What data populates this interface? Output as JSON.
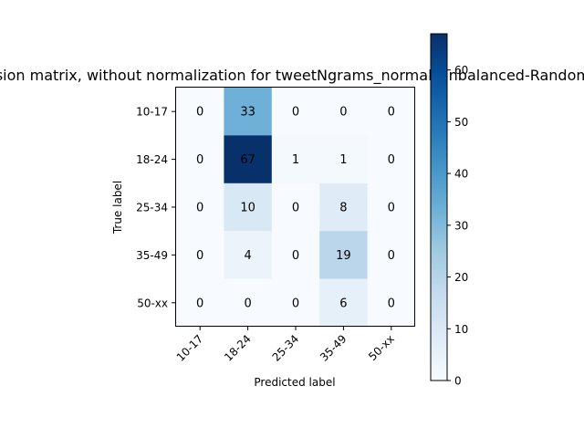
{
  "chart_data": {
    "type": "heatmap",
    "title": "Confusion matrix, without normalization for tweetNgrams_normal_unbalanced-RandomForest",
    "xlabel": "Predicted label",
    "ylabel": "True label",
    "x_categories": [
      "10-17",
      "18-24",
      "25-34",
      "35-49",
      "50-xx"
    ],
    "y_categories": [
      "10-17",
      "18-24",
      "25-34",
      "35-49",
      "50-xx"
    ],
    "matrix": [
      [
        0,
        33,
        0,
        0,
        0
      ],
      [
        0,
        67,
        1,
        1,
        0
      ],
      [
        0,
        10,
        0,
        8,
        0
      ],
      [
        0,
        4,
        0,
        19,
        0
      ],
      [
        0,
        0,
        0,
        6,
        0
      ]
    ],
    "colormap": "Blues",
    "colorbar": {
      "min": 0,
      "max": 67,
      "ticks": [
        0,
        10,
        20,
        30,
        40,
        50,
        60
      ]
    },
    "colors": {
      "low": "#f7fbff",
      "high": "#08306b"
    }
  }
}
